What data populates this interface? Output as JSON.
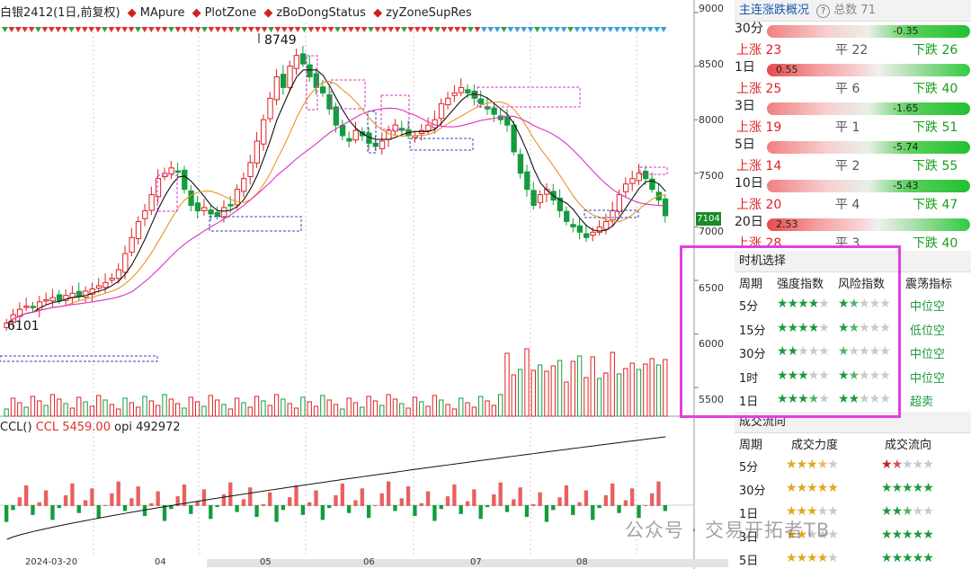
{
  "legend": {
    "instrument": "白银2412(1日,前复权)",
    "items": [
      {
        "label": "MApure",
        "color": "#d02020"
      },
      {
        "label": "PlotZone",
        "color": "#d02020"
      },
      {
        "label": "zBoDongStatus",
        "color": "#d02020"
      },
      {
        "label": "zyZoneSupRes",
        "color": "#d02020"
      }
    ]
  },
  "price_labels": {
    "high": "8749",
    "low": "6101",
    "last": "7104"
  },
  "y_axis_ticks": [
    "9000",
    "8500",
    "8000",
    "7500",
    "7000",
    "6500",
    "6000",
    "5500"
  ],
  "x_axis_ticks": [
    "2024-03-20",
    "04",
    "05",
    "06",
    "07",
    "08"
  ],
  "indicator_legend": {
    "name": "CCL()",
    "ccl": "CCL 5459.00",
    "opi": "opi 492972"
  },
  "chart_data": {
    "type": "candlestick",
    "ylim": [
      5300,
      9050
    ],
    "high": 8749,
    "low": 6101,
    "last": 7104,
    "closes": [
      6101,
      6180,
      6230,
      6260,
      6250,
      6300,
      6320,
      6340,
      6310,
      6360,
      6380,
      6350,
      6400,
      6420,
      6450,
      6480,
      6520,
      6600,
      6750,
      6900,
      7050,
      7150,
      7300,
      7450,
      7500,
      7550,
      7520,
      7350,
      7200,
      7150,
      7180,
      7120,
      7100,
      7180,
      7200,
      7350,
      7450,
      7600,
      7800,
      8000,
      8200,
      8400,
      8300,
      8500,
      8600,
      8520,
      8400,
      8300,
      8250,
      8100,
      7950,
      7850,
      7800,
      7900,
      7850,
      7780,
      7750,
      7800,
      7900,
      7950,
      7900,
      7850,
      7850,
      7900,
      7950,
      8000,
      8150,
      8200,
      8250,
      8300,
      8250,
      8200,
      8150,
      8100,
      8050,
      8000,
      7950,
      7700,
      7500,
      7350,
      7200,
      7300,
      7350,
      7250,
      7150,
      7050,
      7000,
      6950,
      6900,
      6950,
      7000,
      7050,
      7150,
      7300,
      7400,
      7450,
      7500,
      7450,
      7350,
      7250,
      7104
    ]
  },
  "sidebar": {
    "overview": {
      "title": "主连涨跌概况",
      "help": "?",
      "total_label": "总数 71",
      "rows": [
        {
          "period": "30分",
          "value": "-0.35",
          "up": "上涨 23",
          "flat": "平 22",
          "down": "下跌 26"
        },
        {
          "period": "1日",
          "value": "0.55",
          "up": "上涨 25",
          "flat": "平 6",
          "down": "下跌 40"
        },
        {
          "period": "3日",
          "value": "-1.65",
          "up": "上涨 19",
          "flat": "平 1",
          "down": "下跌 51"
        },
        {
          "period": "5日",
          "value": "-5.74",
          "up": "上涨 14",
          "flat": "平 2",
          "down": "下跌 55"
        },
        {
          "period": "10日",
          "value": "-5.43",
          "up": "上涨 20",
          "flat": "平 4",
          "down": "下跌 47"
        },
        {
          "period": "20日",
          "value": "2.53",
          "up": "上涨 28",
          "flat": "平 3",
          "down": "下跌 40"
        }
      ]
    },
    "timing": {
      "title": "时机选择",
      "headers": [
        "周期",
        "强度指数",
        "风险指数",
        "震荡指标"
      ],
      "rows": [
        {
          "period": "5分",
          "strength": 4,
          "risk": 1.5,
          "osc": "中位空"
        },
        {
          "period": "15分",
          "strength": 4,
          "risk": 1.5,
          "osc": "低位空"
        },
        {
          "period": "30分",
          "strength": 2,
          "risk": 0.5,
          "osc": "中位空"
        },
        {
          "period": "1时",
          "strength": 3,
          "risk": 1.5,
          "osc": "中位空"
        },
        {
          "period": "1日",
          "strength": 3.5,
          "risk": 2,
          "osc": "超卖"
        }
      ]
    },
    "flow": {
      "title": "成交流向",
      "headers": [
        "周期",
        "成交力度",
        "成交流向"
      ],
      "rows": [
        {
          "period": "5分",
          "strength": 3.5,
          "flow": 1.5
        },
        {
          "period": "30分",
          "strength": 5,
          "flow": 5
        },
        {
          "period": "1日",
          "strength": 3,
          "flow": 2.5
        },
        {
          "period": "3日",
          "strength": 2,
          "flow": 5
        },
        {
          "period": "5日",
          "strength": 4,
          "flow": 5
        }
      ]
    }
  },
  "watermark": "公众号 · 交易开拓者TB"
}
